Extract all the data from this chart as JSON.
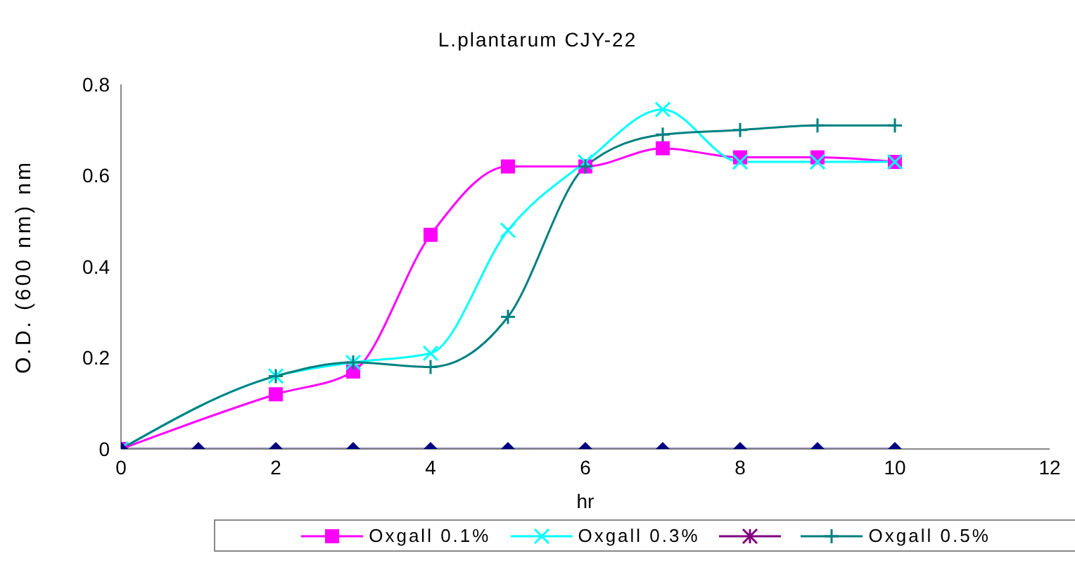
{
  "chart_data": {
    "type": "line",
    "title": "L.plantarum CJY-22",
    "xlabel": "hr",
    "ylabel": "O.D. (600 nm) nm",
    "x": [
      0,
      2,
      3,
      4,
      5,
      6,
      7,
      8,
      9,
      10
    ],
    "xlim": [
      0,
      12
    ],
    "xticks": [
      0,
      2,
      4,
      6,
      8,
      10,
      12
    ],
    "ylim": [
      0,
      0.8
    ],
    "yticks": [
      0,
      0.2,
      0.4,
      0.6,
      0.8
    ],
    "grid": false,
    "legend": "bottom",
    "line_style": "solid",
    "series": [
      {
        "name": "Oxgall 0.1%",
        "color": "#ff00ff",
        "marker": "square",
        "values": [
          0,
          0.12,
          0.17,
          0.47,
          0.62,
          0.62,
          0.66,
          0.64,
          0.64,
          0.63
        ]
      },
      {
        "name": "Oxgall 0.3%",
        "color": "#00ffff",
        "marker": "cross",
        "values": [
          0,
          0.16,
          0.19,
          0.21,
          0.48,
          0.63,
          0.745,
          0.63,
          0.63,
          0.63
        ]
      },
      {
        "color": "#800080",
        "marker": "star",
        "values": [
          null,
          null,
          null,
          null,
          null,
          null,
          null,
          null,
          null,
          null
        ]
      },
      {
        "name": "Oxgall 0.5%",
        "color": "#008080",
        "marker": "plus",
        "values": [
          0,
          0.16,
          0.19,
          0.18,
          0.29,
          0.62,
          0.69,
          0.7,
          0.71,
          0.71
        ]
      },
      {
        "color": "#000080",
        "marker": "diamond",
        "x": [
          0,
          1,
          2,
          3,
          4,
          5,
          6,
          7,
          8,
          9,
          10
        ],
        "values": [
          0,
          0,
          0,
          0,
          0,
          0,
          0,
          0,
          0,
          0,
          0
        ]
      }
    ]
  }
}
